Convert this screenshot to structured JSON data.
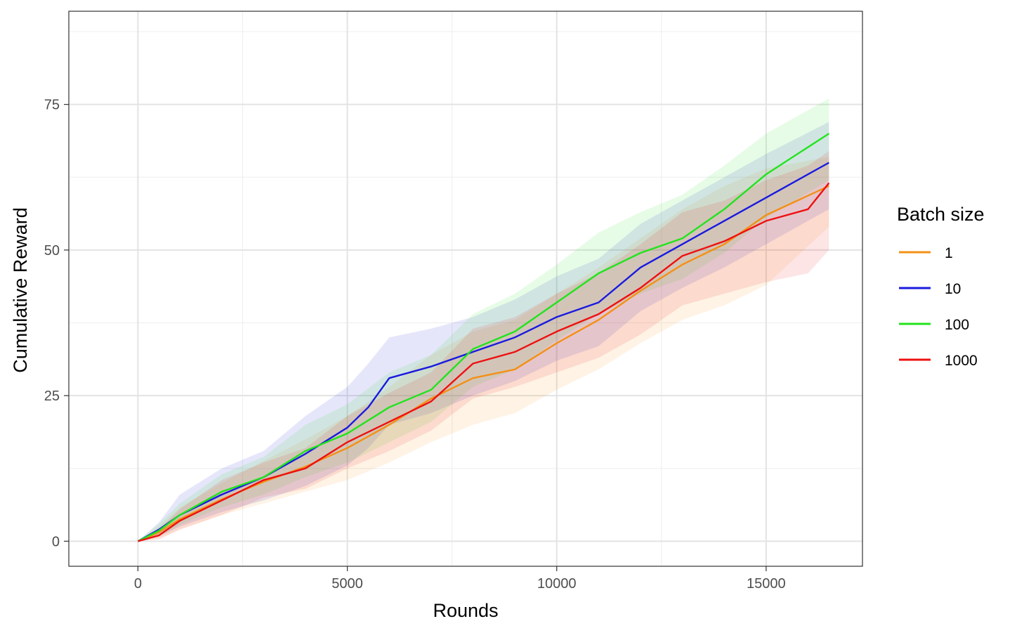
{
  "chart_data": {
    "type": "line",
    "title": "",
    "xlabel": "Rounds",
    "ylabel": "Cumulative Reward",
    "xlim": [
      -1650,
      17300
    ],
    "ylim": [
      -4.3,
      91
    ],
    "x_ticks": [
      0,
      5000,
      10000,
      15000
    ],
    "x_tick_labels": [
      "0",
      "5000",
      "10000",
      "15000"
    ],
    "y_ticks": [
      0,
      25,
      50,
      75
    ],
    "y_tick_labels": [
      "0",
      "25",
      "50",
      "75"
    ],
    "grid": true,
    "legend": {
      "title": "Batch size",
      "position": "right"
    },
    "series": [
      {
        "name": "1",
        "color": "#f39016",
        "x": [
          0,
          500,
          1000,
          2000,
          3000,
          4000,
          5000,
          6000,
          7000,
          8000,
          9000,
          10000,
          11000,
          12000,
          13000,
          14000,
          15000,
          16500
        ],
        "y": [
          0,
          1.5,
          3.8,
          7.2,
          10.2,
          12.8,
          16.0,
          20.0,
          24.5,
          28.0,
          29.5,
          34.0,
          38.0,
          43.0,
          47.5,
          51.0,
          56.0,
          61.0
        ],
        "lower": [
          0,
          0.5,
          2.0,
          4.5,
          6.5,
          8.5,
          10.5,
          13.5,
          17.0,
          20.0,
          22.0,
          26.0,
          29.5,
          34.0,
          38.0,
          40.5,
          44.0,
          54.0
        ],
        "upper": [
          0,
          2.5,
          5.8,
          10.0,
          13.8,
          17.5,
          21.5,
          26.5,
          32.0,
          36.0,
          38.0,
          42.5,
          47.0,
          52.0,
          57.0,
          61.0,
          64.0,
          66.0
        ]
      },
      {
        "name": "10",
        "color": "#1a1adf",
        "x": [
          0,
          500,
          1000,
          2000,
          3000,
          4000,
          5000,
          5500,
          6000,
          7000,
          8000,
          9000,
          10000,
          11000,
          12000,
          13000,
          14000,
          15000,
          16500
        ],
        "y": [
          0,
          2.0,
          4.5,
          8.0,
          11.0,
          15.0,
          19.5,
          23.0,
          28.0,
          30.0,
          32.5,
          35.0,
          38.5,
          41.0,
          47.0,
          51.0,
          55.0,
          59.0,
          65.0
        ],
        "lower": [
          0,
          0.8,
          2.5,
          5.0,
          7.0,
          9.5,
          13.0,
          16.0,
          20.0,
          22.0,
          25.0,
          27.5,
          31.0,
          33.5,
          39.5,
          43.5,
          47.0,
          51.0,
          57.0
        ],
        "upper": [
          0,
          3.2,
          8.0,
          12.5,
          15.5,
          21.5,
          26.5,
          30.5,
          35.0,
          36.5,
          38.5,
          41.5,
          45.5,
          48.5,
          54.5,
          58.5,
          62.5,
          66.5,
          72.0
        ]
      },
      {
        "name": "100",
        "color": "#22e31c",
        "x": [
          0,
          500,
          1000,
          2000,
          3000,
          4000,
          5000,
          6000,
          7000,
          8000,
          9000,
          10000,
          11000,
          12000,
          13000,
          14000,
          15000,
          16500
        ],
        "y": [
          0,
          1.8,
          4.5,
          8.5,
          11.0,
          15.5,
          18.5,
          23.0,
          26.0,
          33.0,
          36.0,
          41.0,
          46.0,
          49.5,
          52.0,
          57.0,
          63.0,
          70.0
        ],
        "lower": [
          0,
          0.8,
          2.8,
          5.8,
          8.0,
          11.0,
          13.5,
          17.0,
          20.5,
          26.5,
          29.5,
          34.5,
          39.0,
          42.5,
          45.0,
          49.5,
          55.5,
          62.0
        ],
        "upper": [
          0,
          3.0,
          6.5,
          11.5,
          14.5,
          20.0,
          23.5,
          29.0,
          32.0,
          39.0,
          42.5,
          47.5,
          53.0,
          56.5,
          59.5,
          64.5,
          70.0,
          76.0
        ]
      },
      {
        "name": "1000",
        "color": "#ee1010",
        "x": [
          0,
          500,
          1000,
          2000,
          3000,
          4000,
          5000,
          6000,
          7000,
          8000,
          9000,
          10000,
          11000,
          12000,
          13000,
          14000,
          15000,
          16000,
          16500
        ],
        "y": [
          0,
          1.0,
          3.5,
          7.0,
          10.5,
          12.5,
          17.0,
          20.5,
          24.0,
          30.5,
          32.5,
          36.0,
          39.0,
          43.5,
          49.0,
          51.5,
          55.0,
          57.0,
          61.5
        ],
        "lower": [
          0,
          0.3,
          2.0,
          4.5,
          7.5,
          9.0,
          12.5,
          15.5,
          19.0,
          24.5,
          26.5,
          29.0,
          31.5,
          35.5,
          40.5,
          42.5,
          44.5,
          46.0,
          50.0
        ],
        "upper": [
          0,
          2.0,
          5.5,
          10.5,
          13.5,
          16.0,
          21.5,
          25.5,
          29.0,
          36.5,
          38.5,
          42.5,
          46.0,
          51.0,
          56.5,
          58.5,
          62.0,
          64.5,
          67.0
        ]
      }
    ]
  }
}
